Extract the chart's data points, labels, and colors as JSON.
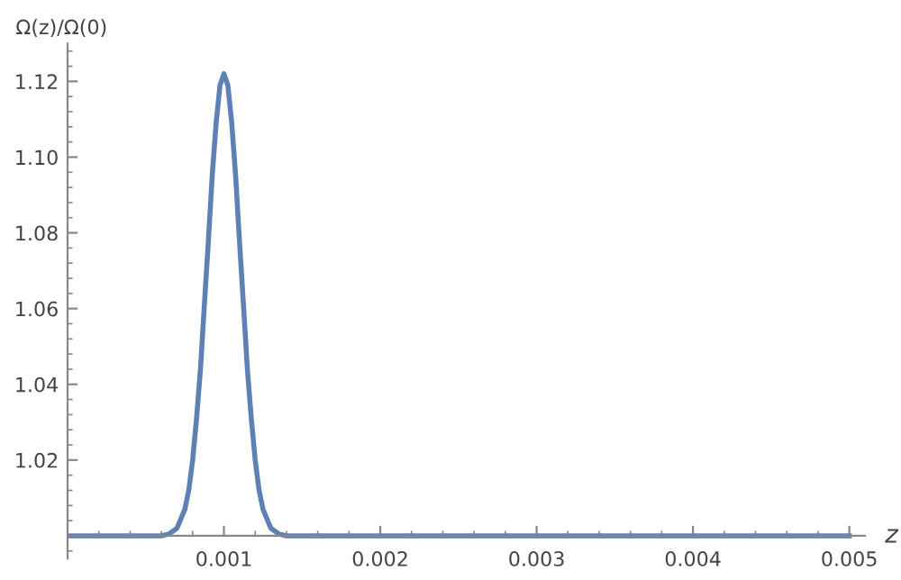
{
  "chart_data": {
    "type": "line",
    "xlabel": "z",
    "ylabel": "Ω(z)/Ω(0)",
    "series": [
      {
        "color": "#5e81b5",
        "x": [
          0,
          0.0005,
          0.0006,
          0.00065,
          0.0007,
          0.00075,
          0.000775,
          0.0008,
          0.000825,
          0.00085,
          0.000875,
          0.0009,
          0.000925,
          0.00095,
          0.000975,
          0.001,
          0.001025,
          0.00105,
          0.001075,
          0.0011,
          0.001125,
          0.00115,
          0.001175,
          0.0012,
          0.001225,
          0.00125,
          0.0013,
          0.00135,
          0.0014,
          0.0015,
          0.005
        ],
        "values": [
          1.0,
          1.0,
          1.0,
          1.0005,
          1.002,
          1.007,
          1.012,
          1.02,
          1.031,
          1.044,
          1.061,
          1.0775,
          1.095,
          1.109,
          1.119,
          1.122,
          1.119,
          1.109,
          1.095,
          1.0775,
          1.061,
          1.044,
          1.031,
          1.02,
          1.012,
          1.007,
          1.002,
          1.0005,
          1.0,
          1.0,
          1.0
        ]
      }
    ],
    "xlim": [
      0,
      0.0051
    ],
    "ylim": [
      0.994,
      1.13
    ],
    "xticks": [
      0.001,
      0.002,
      0.003,
      0.004,
      0.005
    ],
    "yticks": [
      {
        "value": 1.02,
        "label": "1.02"
      },
      {
        "value": 1.04,
        "label": "1.04"
      },
      {
        "value": 1.06,
        "label": "1.06"
      },
      {
        "value": 1.08,
        "label": "1.08"
      },
      {
        "value": 1.1,
        "label": "1.10"
      },
      {
        "value": 1.12,
        "label": "1.12"
      }
    ],
    "grid": false,
    "legend": false,
    "line_style": "solid",
    "marker": "none"
  }
}
